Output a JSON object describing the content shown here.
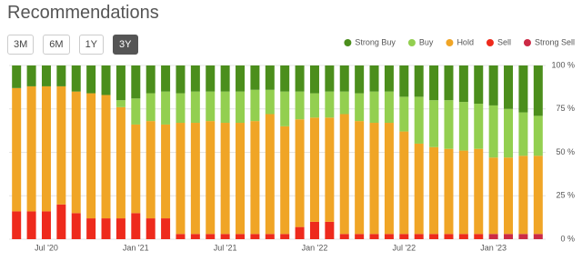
{
  "range_buttons": [
    "3M",
    "6M",
    "1Y",
    "3Y"
  ],
  "chart_data": {
    "type": "stacked_bar",
    "title": "Recommendations",
    "categories": [
      null,
      null,
      "Jul '20",
      null,
      null,
      null,
      null,
      null,
      "Jan '21",
      null,
      null,
      null,
      null,
      null,
      "Jul '21",
      null,
      null,
      null,
      null,
      null,
      "Jan '22",
      null,
      null,
      null,
      null,
      null,
      "Jul '22",
      null,
      null,
      null,
      null,
      null,
      "Jan '23",
      null,
      null,
      null
    ],
    "series": [
      {
        "name": "Strong Buy",
        "color": "#4b8e1c",
        "values": [
          13,
          12,
          12,
          12,
          15,
          16,
          17,
          20,
          19,
          16,
          15,
          16,
          15,
          15,
          15,
          15,
          14,
          14,
          15,
          15,
          16,
          15,
          15,
          16,
          15,
          15,
          18,
          18,
          20,
          20,
          21,
          22,
          23,
          25,
          27,
          29
        ]
      },
      {
        "name": "Buy",
        "color": "#93cf50",
        "values": [
          0,
          0,
          0,
          0,
          0,
          0,
          0,
          4,
          15,
          16,
          19,
          17,
          18,
          17,
          18,
          18,
          18,
          14,
          20,
          16,
          14,
          15,
          13,
          16,
          18,
          18,
          20,
          27,
          27,
          28,
          28,
          26,
          30,
          28,
          25,
          23
        ]
      },
      {
        "name": "Hold",
        "color": "#f0a526",
        "values": [
          71,
          72,
          72,
          68,
          70,
          72,
          71,
          64,
          51,
          56,
          54,
          64,
          64,
          65,
          64,
          64,
          65,
          69,
          62,
          62,
          60,
          60,
          69,
          65,
          64,
          64,
          59,
          52,
          50,
          49,
          48,
          49,
          44,
          44,
          45,
          45
        ]
      },
      {
        "name": "Sell",
        "color": "#ee2a1c",
        "values": [
          16,
          16,
          16,
          20,
          15,
          12,
          12,
          12,
          15,
          12,
          12,
          3,
          3,
          3,
          3,
          3,
          3,
          3,
          3,
          7,
          10,
          10,
          3,
          3,
          3,
          3,
          3,
          3,
          3,
          3,
          3,
          3,
          0,
          0,
          0,
          0
        ]
      },
      {
        "name": "Strong Sell",
        "color": "#cc2a45",
        "values": [
          0,
          0,
          0,
          0,
          0,
          0,
          0,
          0,
          0,
          0,
          0,
          0,
          0,
          0,
          0,
          0,
          0,
          0,
          0,
          0,
          0,
          0,
          0,
          0,
          0,
          0,
          0,
          0,
          0,
          0,
          0,
          0,
          3,
          3,
          3,
          3
        ]
      }
    ],
    "ylim": [
      0,
      100
    ],
    "yticks": [
      {
        "value": 0,
        "label": "0 %"
      },
      {
        "value": 25,
        "label": "25 %"
      },
      {
        "value": 50,
        "label": "50 %"
      },
      {
        "value": 75,
        "label": "75 %"
      },
      {
        "value": 100,
        "label": "100 %"
      }
    ],
    "grid": true,
    "legend": "top-right"
  }
}
